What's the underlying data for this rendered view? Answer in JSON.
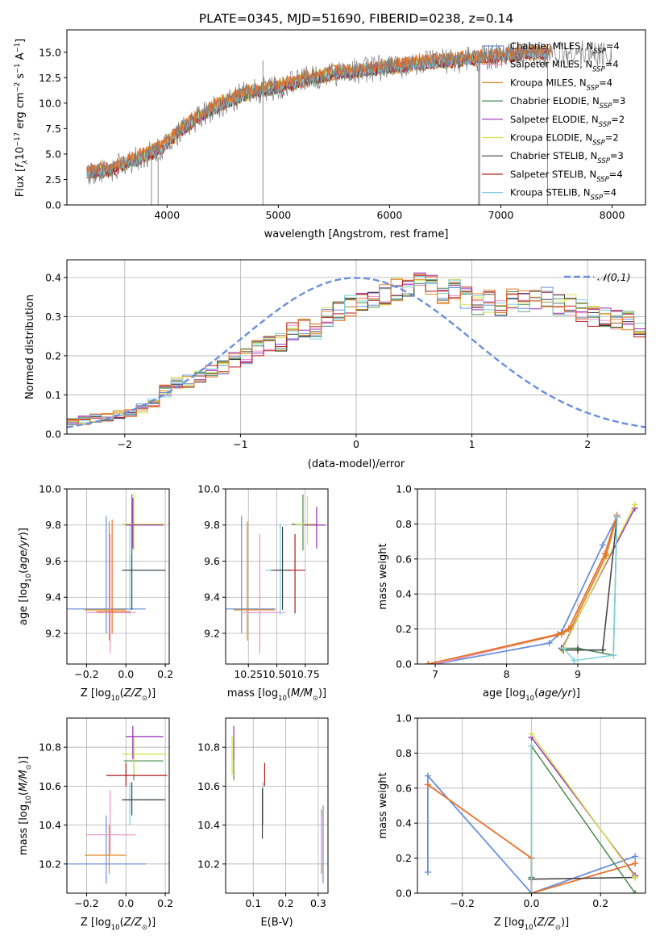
{
  "figure_title": "PLATE=0345, MJD=51690, FIBERID=0238, z=0.14",
  "colors": {
    "Chabrier MILES": "#6a8fdc",
    "Salpeter MILES": "#e892c8",
    "Kroupa MILES": "#d9891e",
    "Chabrier ELODIE": "#4b8a50",
    "Salpeter ELODIE": "#9b2fb8",
    "Kroupa ELODIE": "#d2e34a",
    "Chabrier STELIB": "#404040",
    "Salpeter STELIB": "#b21a1a",
    "Kroupa STELIB": "#7ecfe0",
    "orange": "#e8742a",
    "normal": "#6a8fdc",
    "grid": "#b0b0b0"
  },
  "chart_data": [
    {
      "type": "line",
      "xlabel": "wavelength [Angstrom, rest frame]",
      "ylabel": "Flux [f_λ 10^-17 erg cm^-2 s^-1 A^-1]",
      "xlim": [
        3100,
        8300
      ],
      "ylim": [
        0,
        17.2
      ],
      "xticks": [
        4000,
        5000,
        6000,
        7000,
        8000
      ],
      "yticks": [
        0.0,
        2.5,
        5.0,
        7.5,
        10.0,
        12.5,
        15.0
      ],
      "legend_location": "right",
      "series": [
        {
          "name": "Chabrier MILES",
          "nssp": "4"
        },
        {
          "name": "Salpeter MILES",
          "nssp": "4"
        },
        {
          "name": "Kroupa MILES",
          "nssp": "4"
        },
        {
          "name": "Chabrier ELODIE",
          "nssp": "3"
        },
        {
          "name": "Salpeter ELODIE",
          "nssp": "2"
        },
        {
          "name": "Kroupa ELODIE",
          "nssp": "2"
        },
        {
          "name": "Chabrier STELIB",
          "nssp": "3"
        },
        {
          "name": "Salpeter STELIB",
          "nssp": "4"
        },
        {
          "name": "Kroupa STELIB",
          "nssp": "4"
        }
      ],
      "continuum": [
        [
          3280,
          3.2
        ],
        [
          3480,
          3.4
        ],
        [
          3600,
          4.0
        ],
        [
          3800,
          4.8
        ],
        [
          3950,
          5.6
        ],
        [
          4100,
          7.2
        ],
        [
          4300,
          8.7
        ],
        [
          4500,
          10.0
        ],
        [
          4700,
          10.9
        ],
        [
          4900,
          11.4
        ],
        [
          5100,
          11.9
        ],
        [
          5300,
          12.5
        ],
        [
          5500,
          12.9
        ],
        [
          5800,
          13.3
        ],
        [
          6100,
          13.7
        ],
        [
          6400,
          14.0
        ],
        [
          6700,
          14.3
        ],
        [
          7000,
          14.6
        ],
        [
          7300,
          14.9
        ]
      ],
      "spikes": [
        [
          4862,
          0,
          14.2
        ],
        [
          3860,
          0,
          5.4
        ],
        [
          3920,
          0,
          4.7
        ],
        [
          6800,
          0,
          14.4
        ],
        [
          7420,
          0,
          15.5
        ],
        [
          6810,
          0,
          14.3
        ]
      ]
    },
    {
      "type": "bar",
      "xlabel": "(data-model)/error",
      "ylabel": "Normed distribution",
      "xlim": [
        -2.5,
        2.5
      ],
      "ylim": [
        0,
        0.445
      ],
      "xticks": [
        -2,
        -1,
        0,
        1,
        2
      ],
      "yticks": [
        0.0,
        0.1,
        0.2,
        0.3,
        0.4
      ],
      "legend": "𝒩(0,1)",
      "legend_location": "top-right",
      "bin_width": 0.1,
      "bin_start": -2.5,
      "base_values": [
        0.035,
        0.035,
        0.04,
        0.045,
        0.05,
        0.055,
        0.065,
        0.08,
        0.11,
        0.13,
        0.135,
        0.15,
        0.16,
        0.17,
        0.19,
        0.2,
        0.22,
        0.23,
        0.235,
        0.26,
        0.27,
        0.26,
        0.3,
        0.31,
        0.33,
        0.335,
        0.34,
        0.36,
        0.37,
        0.375,
        0.38,
        0.385,
        0.36,
        0.37,
        0.35,
        0.33,
        0.34,
        0.33,
        0.35,
        0.34,
        0.34,
        0.35,
        0.33,
        0.33,
        0.315,
        0.3,
        0.3,
        0.29,
        0.29,
        0.27,
        0.26,
        0.25,
        0.24,
        0.2,
        0.22,
        0.2,
        0.18,
        0.175,
        0.16,
        0.14,
        0.14,
        0.13,
        0.12,
        0.1,
        0.095,
        0.085,
        0.075,
        0.07,
        0.06,
        0.055,
        0.05,
        0.045,
        0.04,
        0.035,
        0.03,
        0.03,
        0.025,
        0.025,
        0.02,
        0.02
      ]
    },
    {
      "type": "scatter",
      "xlabel": "Z [log10(Z/Z⊙)]",
      "ylabel": "age  [log10(age/yr)]",
      "xlim": [
        -0.3,
        0.22
      ],
      "ylim": [
        9.03,
        10.0
      ],
      "xticks": [
        -0.2,
        0.0,
        0.2
      ],
      "yticks": [
        9.2,
        9.4,
        9.6,
        9.8,
        10.0
      ],
      "points": [
        {
          "series": "Chabrier MILES",
          "x": -0.1,
          "y": 9.335,
          "xe": [
            -0.3,
            0.1
          ],
          "ye": [
            9.2,
            9.85
          ]
        },
        {
          "series": "Kroupa MILES",
          "x": -0.085,
          "y": 9.33,
          "xe": [
            -0.21,
            0.0
          ],
          "ye": [
            9.16,
            9.82
          ]
        },
        {
          "series": "Salpeter MILES",
          "x": -0.08,
          "y": 9.315,
          "xe": [
            -0.2,
            0.05
          ],
          "ye": [
            9.09,
            9.75
          ]
        },
        {
          "series": "orange",
          "x": -0.07,
          "y": 9.32,
          "xe": [
            -0.15,
            0.02
          ],
          "ye": [
            9.2,
            9.83
          ]
        },
        {
          "series": "Kroupa STELIB",
          "x": 0.02,
          "y": 9.55,
          "xe": [
            -0.02,
            0.2
          ],
          "ye": [
            9.3,
            9.81
          ]
        },
        {
          "series": "Chabrier STELIB",
          "x": 0.03,
          "y": 9.55,
          "xe": [
            -0.02,
            0.2
          ],
          "ye": [
            9.33,
            9.79
          ]
        },
        {
          "series": "Chabrier ELODIE",
          "x": 0.03,
          "y": 9.805,
          "xe": [
            -0.01,
            0.19
          ],
          "ye": [
            9.64,
            9.97
          ]
        },
        {
          "series": "Kroupa ELODIE",
          "x": 0.04,
          "y": 9.805,
          "xe": [
            -0.02,
            0.2
          ],
          "ye": [
            9.66,
            9.98
          ]
        },
        {
          "series": "Salpeter ELODIE",
          "x": 0.035,
          "y": 9.8,
          "xe": [
            0.0,
            0.19
          ],
          "ye": [
            9.67,
            9.95
          ]
        }
      ]
    },
    {
      "type": "scatter",
      "xlabel": "mass [log10(M/M⊙)]",
      "ylabel": "",
      "xlim": [
        10.05,
        10.95
      ],
      "ylim": [
        9.03,
        10.0
      ],
      "xticks": [
        10.25,
        10.5,
        10.75
      ],
      "yticks": [
        9.2,
        9.4,
        9.6,
        9.8,
        10.0
      ],
      "points": [
        {
          "series": "Chabrier MILES",
          "x": 10.19,
          "y": 9.335,
          "xe": [
            10.05,
            10.49
          ],
          "ye": [
            9.2,
            9.85
          ]
        },
        {
          "series": "Kroupa MILES",
          "x": 10.24,
          "y": 9.33,
          "xe": [
            10.12,
            10.48
          ],
          "ye": [
            9.16,
            9.82
          ]
        },
        {
          "series": "Salpeter MILES",
          "x": 10.35,
          "y": 9.315,
          "xe": [
            10.2,
            10.58
          ],
          "ye": [
            9.09,
            9.75
          ]
        },
        {
          "series": "Kroupa STELIB",
          "x": 10.53,
          "y": 9.55,
          "xe": [
            10.4,
            10.62
          ],
          "ye": [
            9.3,
            9.81
          ]
        },
        {
          "series": "Chabrier STELIB",
          "x": 10.55,
          "y": 9.55,
          "xe": [
            10.45,
            10.62
          ],
          "ye": [
            9.33,
            9.79
          ]
        },
        {
          "series": "Salpeter STELIB",
          "x": 10.66,
          "y": 9.55,
          "xe": [
            10.6,
            10.75
          ],
          "ye": [
            9.31,
            9.75
          ]
        },
        {
          "series": "Chabrier ELODIE",
          "x": 10.73,
          "y": 9.805,
          "xe": [
            10.63,
            10.84
          ],
          "ye": [
            9.66,
            9.97
          ]
        },
        {
          "series": "Kroupa ELODIE",
          "x": 10.77,
          "y": 9.805,
          "xe": [
            10.66,
            10.86
          ],
          "ye": [
            9.69,
            9.96
          ]
        },
        {
          "series": "Salpeter ELODIE",
          "x": 10.85,
          "y": 9.8,
          "xe": [
            10.74,
            10.93
          ],
          "ye": [
            9.67,
            9.9
          ]
        }
      ]
    },
    {
      "type": "line",
      "xlabel": "age  [log10(age/yr)]",
      "ylabel": "mass weight",
      "xlim": [
        6.75,
        9.95
      ],
      "ylim": [
        0,
        1.0
      ],
      "xticks": [
        7,
        8,
        9
      ],
      "yticks": [
        0.0,
        0.2,
        0.4,
        0.6,
        0.8,
        1.0
      ],
      "series": [
        {
          "name": "Chabrier MILES",
          "x": [
            7.0,
            8.6,
            8.77,
            9.35,
            9.55
          ],
          "y": [
            0.0,
            0.12,
            0.18,
            0.68,
            0.84
          ]
        },
        {
          "name": "Salpeter MILES",
          "x": [
            7.0,
            8.77,
            8.9,
            9.4,
            9.55
          ],
          "y": [
            0.0,
            0.17,
            0.2,
            0.63,
            0.85
          ]
        },
        {
          "name": "Kroupa MILES",
          "x": [
            6.9,
            8.77,
            8.9,
            9.4,
            9.55
          ],
          "y": [
            0.0,
            0.17,
            0.2,
            0.62,
            0.84
          ]
        },
        {
          "name": "orange",
          "x": [
            6.9,
            8.72,
            8.87,
            9.38,
            9.55
          ],
          "y": [
            0.0,
            0.17,
            0.2,
            0.63,
            0.85
          ]
        },
        {
          "name": "Chabrier ELODIE",
          "x": [
            8.77,
            9.0,
            9.5,
            9.55
          ],
          "y": [
            0.09,
            0.09,
            0.05,
            0.84
          ]
        },
        {
          "name": "Salpeter ELODIE",
          "x": [
            8.78,
            9.8
          ],
          "y": [
            0.09,
            0.89
          ]
        },
        {
          "name": "Kroupa ELODIE",
          "x": [
            8.78,
            9.8
          ],
          "y": [
            0.08,
            0.91
          ]
        },
        {
          "name": "Chabrier STELIB",
          "x": [
            8.8,
            9.0,
            9.35,
            9.55
          ],
          "y": [
            0.08,
            0.08,
            0.08,
            0.84
          ]
        },
        {
          "name": "Kroupa STELIB",
          "x": [
            8.8,
            8.95,
            9.5,
            9.55
          ],
          "y": [
            0.09,
            0.02,
            0.05,
            0.84
          ]
        }
      ]
    },
    {
      "type": "scatter",
      "xlabel": "Z [log10(Z/Z⊙)]",
      "ylabel": "mass [log10(M/M⊙)]",
      "xlim": [
        -0.3,
        0.22
      ],
      "ylim": [
        10.05,
        10.95
      ],
      "xticks": [
        -0.2,
        0.0,
        0.2
      ],
      "yticks": [
        10.2,
        10.4,
        10.6,
        10.8
      ],
      "points": [
        {
          "series": "Chabrier MILES",
          "x": -0.1,
          "y": 10.2,
          "xe": [
            -0.3,
            0.1
          ],
          "ye": [
            10.1,
            10.45
          ]
        },
        {
          "series": "Kroupa MILES",
          "x": -0.085,
          "y": 10.245,
          "xe": [
            -0.21,
            0.0
          ],
          "ye": [
            10.15,
            10.4
          ]
        },
        {
          "series": "Salpeter MILES",
          "x": -0.08,
          "y": 10.35,
          "xe": [
            -0.2,
            0.05
          ],
          "ye": [
            10.25,
            10.58
          ]
        },
        {
          "series": "Kroupa STELIB",
          "x": 0.02,
          "y": 10.53,
          "xe": [
            -0.02,
            0.2
          ],
          "ye": [
            10.4,
            10.62
          ]
        },
        {
          "series": "Chabrier STELIB",
          "x": 0.03,
          "y": 10.53,
          "xe": [
            -0.02,
            0.2
          ],
          "ye": [
            10.45,
            10.62
          ]
        },
        {
          "series": "Salpeter STELIB",
          "x": 0.0,
          "y": 10.655,
          "xe": [
            -0.1,
            0.21
          ],
          "ye": [
            10.6,
            10.72
          ]
        },
        {
          "series": "Chabrier ELODIE",
          "x": 0.04,
          "y": 10.73,
          "xe": [
            -0.01,
            0.19
          ],
          "ye": [
            10.63,
            10.84
          ]
        },
        {
          "series": "Kroupa ELODIE",
          "x": 0.04,
          "y": 10.765,
          "xe": [
            -0.02,
            0.2
          ],
          "ye": [
            10.66,
            10.86
          ]
        },
        {
          "series": "Salpeter ELODIE",
          "x": 0.035,
          "y": 10.855,
          "xe": [
            0.0,
            0.19
          ],
          "ye": [
            10.74,
            10.91
          ]
        }
      ]
    },
    {
      "type": "scatter",
      "xlabel": "E(B-V)",
      "ylabel": "",
      "xlim": [
        0.015,
        0.33
      ],
      "ylim": [
        10.05,
        10.95
      ],
      "xticks": [
        0.1,
        0.2,
        0.3
      ],
      "yticks": [
        10.2,
        10.4,
        10.6,
        10.8
      ],
      "points": [
        {
          "series": "Chabrier ELODIE",
          "x": 0.04,
          "y": 10.78,
          "ye": [
            10.63,
            10.84
          ]
        },
        {
          "series": "Kroupa ELODIE",
          "x": 0.035,
          "y": 10.76,
          "ye": [
            10.66,
            10.86
          ]
        },
        {
          "series": "Salpeter ELODIE",
          "x": 0.04,
          "y": 10.8,
          "ye": [
            10.74,
            10.91
          ]
        },
        {
          "series": "Salpeter STELIB",
          "x": 0.135,
          "y": 10.66,
          "ye": [
            10.6,
            10.72
          ]
        },
        {
          "series": "Kroupa STELIB",
          "x": 0.13,
          "y": 10.5,
          "ye": [
            10.4,
            10.62
          ]
        },
        {
          "series": "Chabrier STELIB",
          "x": 0.128,
          "y": 10.46,
          "ye": [
            10.33,
            10.59
          ]
        },
        {
          "series": "Chabrier MILES",
          "x": 0.315,
          "y": 10.3,
          "ye": [
            10.1,
            10.5
          ]
        },
        {
          "series": "Kroupa MILES",
          "x": 0.31,
          "y": 10.3,
          "ye": [
            10.15,
            10.48
          ]
        },
        {
          "series": "Salpeter MILES",
          "x": 0.31,
          "y": 10.32,
          "ye": [
            10.2,
            10.45
          ]
        }
      ]
    },
    {
      "type": "line",
      "xlabel": "Z [log10(Z/Z⊙)]",
      "ylabel": "mass weight",
      "xlim": [
        -0.33,
        0.33
      ],
      "ylim": [
        0,
        1.0
      ],
      "xticks": [
        -0.2,
        0.0,
        0.2
      ],
      "yticks": [
        0.0,
        0.2,
        0.4,
        0.6,
        0.8,
        1.0
      ],
      "series": [
        {
          "name": "Chabrier MILES",
          "x": [
            -0.3,
            -0.3,
            0.0,
            0.3
          ],
          "y": [
            0.12,
            0.67,
            0.0,
            0.21
          ]
        },
        {
          "name": "Salpeter MILES",
          "x": [
            -0.3,
            0.0,
            0.0,
            0.3
          ],
          "y": [
            0.62,
            0.2,
            0.0,
            0.17
          ]
        },
        {
          "name": "orange",
          "x": [
            -0.3,
            0.0,
            0.0,
            0.3
          ],
          "y": [
            0.62,
            0.2,
            0.0,
            0.17
          ]
        },
        {
          "name": "Chabrier STELIB",
          "x": [
            0.0,
            0.3
          ],
          "y": [
            0.08,
            0.09
          ]
        },
        {
          "name": "Salpeter ELODIE",
          "x": [
            0.0,
            0.3
          ],
          "y": [
            0.89,
            0.1
          ]
        },
        {
          "name": "Kroupa ELODIE",
          "x": [
            0.0,
            0.3
          ],
          "y": [
            0.91,
            0.09
          ]
        },
        {
          "name": "Chabrier ELODIE",
          "x": [
            0.0,
            0.0,
            0.3
          ],
          "y": [
            0.09,
            0.84,
            0.0
          ]
        },
        {
          "name": "Kroupa STELIB",
          "x": [
            0.0,
            0.0
          ],
          "y": [
            0.0,
            0.84
          ]
        }
      ]
    }
  ]
}
